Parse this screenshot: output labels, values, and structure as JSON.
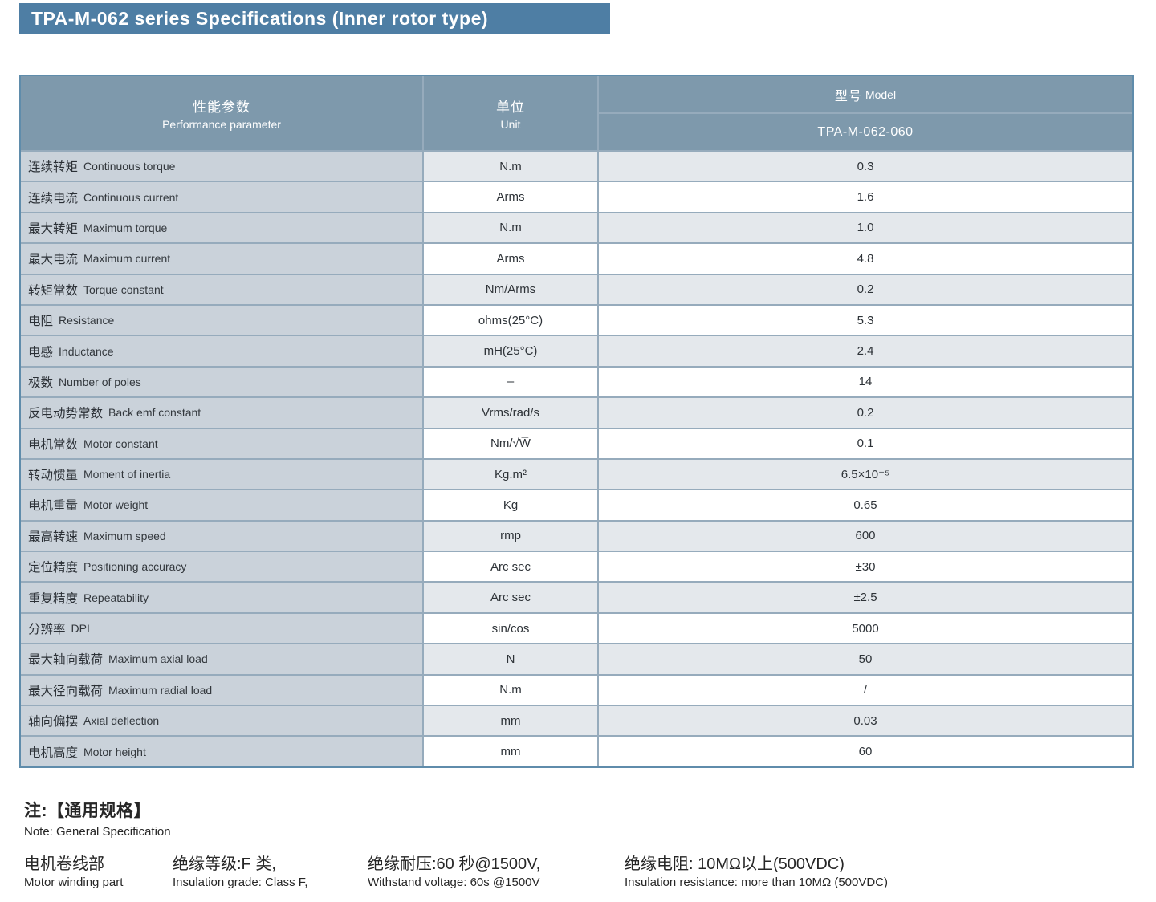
{
  "title": "TPA-M-062 series Specifications (Inner rotor type)",
  "colors": {
    "title_bar": "#4e7ea4",
    "table_header": "#7e99ac",
    "param_column": "#cad2da",
    "stripe_row": "#e4e8ec",
    "grid_line": "#96abbc",
    "outer_border": "#5f8cab"
  },
  "table": {
    "header": {
      "param_zh": "性能参数",
      "param_en": "Performance parameter",
      "unit_zh": "单位",
      "unit_en": "Unit",
      "model_zh": "型号",
      "model_en": "Model",
      "model_value": "TPA-M-062-060"
    },
    "rows": [
      {
        "zh": "连续转矩",
        "en": "Continuous torque",
        "unit": "N.m",
        "value": "0.3"
      },
      {
        "zh": "连续电流",
        "en": "Continuous current",
        "unit": "Arms",
        "value": "1.6"
      },
      {
        "zh": "最大转矩",
        "en": "Maximum torque",
        "unit": "N.m",
        "value": "1.0"
      },
      {
        "zh": "最大电流",
        "en": "Maximum current",
        "unit": "Arms",
        "value": "4.8"
      },
      {
        "zh": "转矩常数",
        "en": "Torque constant",
        "unit": "Nm/Arms",
        "value": "0.2"
      },
      {
        "zh": "电阻",
        "en": "Resistance",
        "unit": "ohms(25°C)",
        "value": "5.3"
      },
      {
        "zh": "电感",
        "en": "Inductance",
        "unit": "mH(25°C)",
        "value": "2.4"
      },
      {
        "zh": "极数",
        "en": "Number of poles",
        "unit": "–",
        "value": "14"
      },
      {
        "zh": "反电动势常数",
        "en": "Back emf constant",
        "unit": "Vrms/rad/s",
        "value": "0.2"
      },
      {
        "zh": "电机常数",
        "en": "Motor constant",
        "unit": "Nm/√W̅",
        "value": "0.1"
      },
      {
        "zh": "转动惯量",
        "en": "Moment of inertia",
        "unit": "Kg.m²",
        "value": "6.5×10⁻⁵"
      },
      {
        "zh": "电机重量",
        "en": "Motor weight",
        "unit": "Kg",
        "value": "0.65"
      },
      {
        "zh": "最高转速",
        "en": "Maximum speed",
        "unit": "rmp",
        "value": "600"
      },
      {
        "zh": "定位精度",
        "en": "Positioning accuracy",
        "unit": "Arc sec",
        "value": "±30"
      },
      {
        "zh": "重复精度",
        "en": "Repeatability",
        "unit": "Arc sec",
        "value": "±2.5"
      },
      {
        "zh": "分辨率",
        "en": "DPI",
        "unit": "sin/cos",
        "value": "5000"
      },
      {
        "zh": "最大轴向载荷",
        "en": "Maximum axial load",
        "unit": "N",
        "value": "50"
      },
      {
        "zh": "最大径向载荷",
        "en": "Maximum radial load",
        "unit": "N.m",
        "value": "/"
      },
      {
        "zh": "轴向偏摆",
        "en": "Axial deflection",
        "unit": "mm",
        "value": "0.03"
      },
      {
        "zh": "电机高度",
        "en": "Motor height",
        "unit": "mm",
        "value": "60"
      }
    ]
  },
  "notes": {
    "heading_zh": "注:【通用规格】",
    "heading_en": "Note: General Specification",
    "items": [
      {
        "zh": "电机卷线部",
        "en": "Motor winding part"
      },
      {
        "zh": "绝缘等级:F 类,",
        "en": "Insulation grade: Class F,"
      },
      {
        "zh": "绝缘耐压:60 秒@1500V,",
        "en": "Withstand voltage: 60s @1500V"
      },
      {
        "zh": "绝缘电阻: 10MΩ以上(500VDC)",
        "en": "Insulation resistance: more than 10MΩ (500VDC)"
      }
    ]
  }
}
